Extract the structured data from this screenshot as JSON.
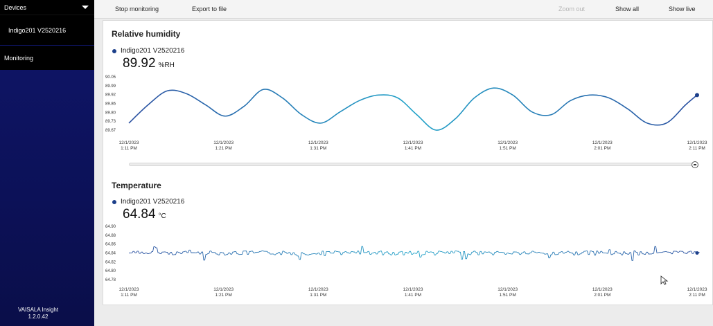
{
  "sidebar": {
    "devices_label": "Devices",
    "device_name": "Indigo201 V2520216",
    "monitoring_label": "Monitoring",
    "brand_name": "VAISALA Insight",
    "brand_version": "1.2.0.42"
  },
  "toolbar": {
    "stop_monitoring": "Stop monitoring",
    "export": "Export to file",
    "zoom_out": "Zoom out",
    "show_all": "Show all",
    "show_live": "Show live"
  },
  "humidity": {
    "title": "Relative humidity",
    "device": "Indigo201 V2520216",
    "value": "89.92",
    "unit": "%RH"
  },
  "temperature": {
    "title": "Temperature",
    "device": "Indigo201 V2520216",
    "value": "64.84",
    "unit": "°C"
  },
  "colors": {
    "line_start": "#2a4fa0",
    "line_mid": "#21a3c9",
    "sidebar": "#0f166a",
    "marker": "#1c3f8a"
  },
  "chart_data": [
    {
      "type": "line",
      "title": "Relative humidity",
      "series": [
        {
          "name": "Indigo201 V2520216"
        }
      ],
      "y_ticks": [
        "90.05",
        "89.99",
        "89.92",
        "89.86",
        "89.80",
        "89.73",
        "89.67"
      ],
      "ylim": [
        89.67,
        90.05
      ],
      "x_ticks": [
        [
          "12/1/2023",
          "1:11 PM"
        ],
        [
          "12/1/2023",
          "1:21 PM"
        ],
        [
          "12/1/2023",
          "1:31 PM"
        ],
        [
          "12/1/2023",
          "1:41 PM"
        ],
        [
          "12/1/2023",
          "1:51 PM"
        ],
        [
          "12/1/2023",
          "2:01 PM"
        ],
        [
          "12/1/2023",
          "2:11 PM"
        ]
      ],
      "xlim_minutes": [
        0,
        60
      ],
      "points": [
        [
          0,
          89.72
        ],
        [
          2.5,
          89.85
        ],
        [
          5,
          89.95
        ],
        [
          7.5,
          89.93
        ],
        [
          10,
          89.85
        ],
        [
          12.5,
          89.77
        ],
        [
          15,
          89.84
        ],
        [
          17.5,
          89.96
        ],
        [
          20,
          89.9
        ],
        [
          22.5,
          89.78
        ],
        [
          25,
          89.72
        ],
        [
          27.5,
          89.8
        ],
        [
          30,
          89.88
        ],
        [
          32.5,
          89.92
        ],
        [
          35,
          89.9
        ],
        [
          37.5,
          89.78
        ],
        [
          40,
          89.67
        ],
        [
          42.5,
          89.75
        ],
        [
          45,
          89.9
        ],
        [
          47.5,
          89.97
        ],
        [
          50,
          89.92
        ],
        [
          52.5,
          89.8
        ],
        [
          55,
          89.78
        ],
        [
          57.5,
          89.88
        ],
        [
          60,
          89.92
        ],
        [
          62.5,
          89.9
        ],
        [
          65,
          89.82
        ],
        [
          67.5,
          89.72
        ],
        [
          70,
          89.72
        ],
        [
          72.5,
          89.85
        ],
        [
          74,
          89.92
        ]
      ]
    },
    {
      "type": "line",
      "title": "Temperature",
      "series": [
        {
          "name": "Indigo201 V2520216"
        }
      ],
      "y_ticks": [
        "64.90",
        "64.88",
        "64.86",
        "64.84",
        "64.82",
        "64.80",
        "64.78"
      ],
      "ylim": [
        64.78,
        64.9
      ],
      "x_ticks": [
        [
          "12/1/2023",
          "1:11 PM"
        ],
        [
          "12/1/2023",
          "1:21 PM"
        ],
        [
          "12/1/2023",
          "1:31 PM"
        ],
        [
          "12/1/2023",
          "1:41 PM"
        ],
        [
          "12/1/2023",
          "1:51 PM"
        ],
        [
          "12/1/2023",
          "2:01 PM"
        ],
        [
          "12/1/2023",
          "2:11 PM"
        ]
      ],
      "baseline": 64.84,
      "last_value": 64.84
    }
  ]
}
